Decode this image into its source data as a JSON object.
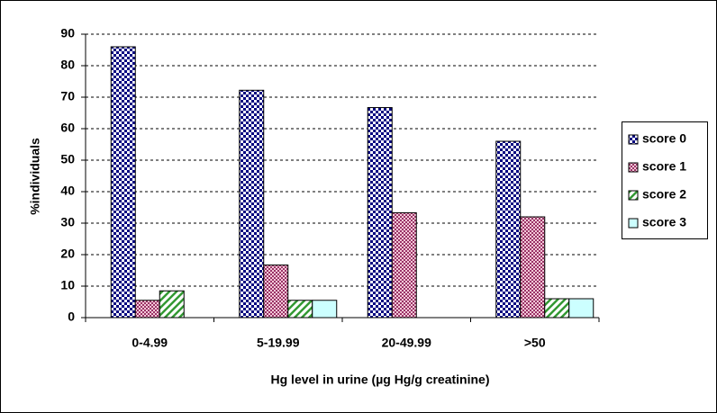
{
  "chart_data": {
    "type": "bar",
    "x_label": "Hg level in urine (µg Hg/g creatinine)",
    "y_label": "%individuals",
    "categories": [
      "0-4.99",
      "5-19.99",
      "20-49.99",
      ">50"
    ],
    "series": [
      {
        "name": "score 0",
        "color": "#000080",
        "values": [
          86,
          72.2,
          66.7,
          56
        ]
      },
      {
        "name": "score 1",
        "color": "#993366",
        "values": [
          5.5,
          16.7,
          33.3,
          32
        ]
      },
      {
        "name": "score 2",
        "color": "#339933",
        "values": [
          8.5,
          5.5,
          0,
          6
        ]
      },
      {
        "name": "score 3",
        "color": "#ccffff",
        "values": [
          0,
          5.5,
          0,
          6
        ]
      }
    ],
    "ylim": [
      0,
      90
    ],
    "yticks": [
      0,
      10,
      20,
      30,
      40,
      50,
      60,
      70,
      80,
      90
    ],
    "grid": true,
    "legend": "right"
  }
}
